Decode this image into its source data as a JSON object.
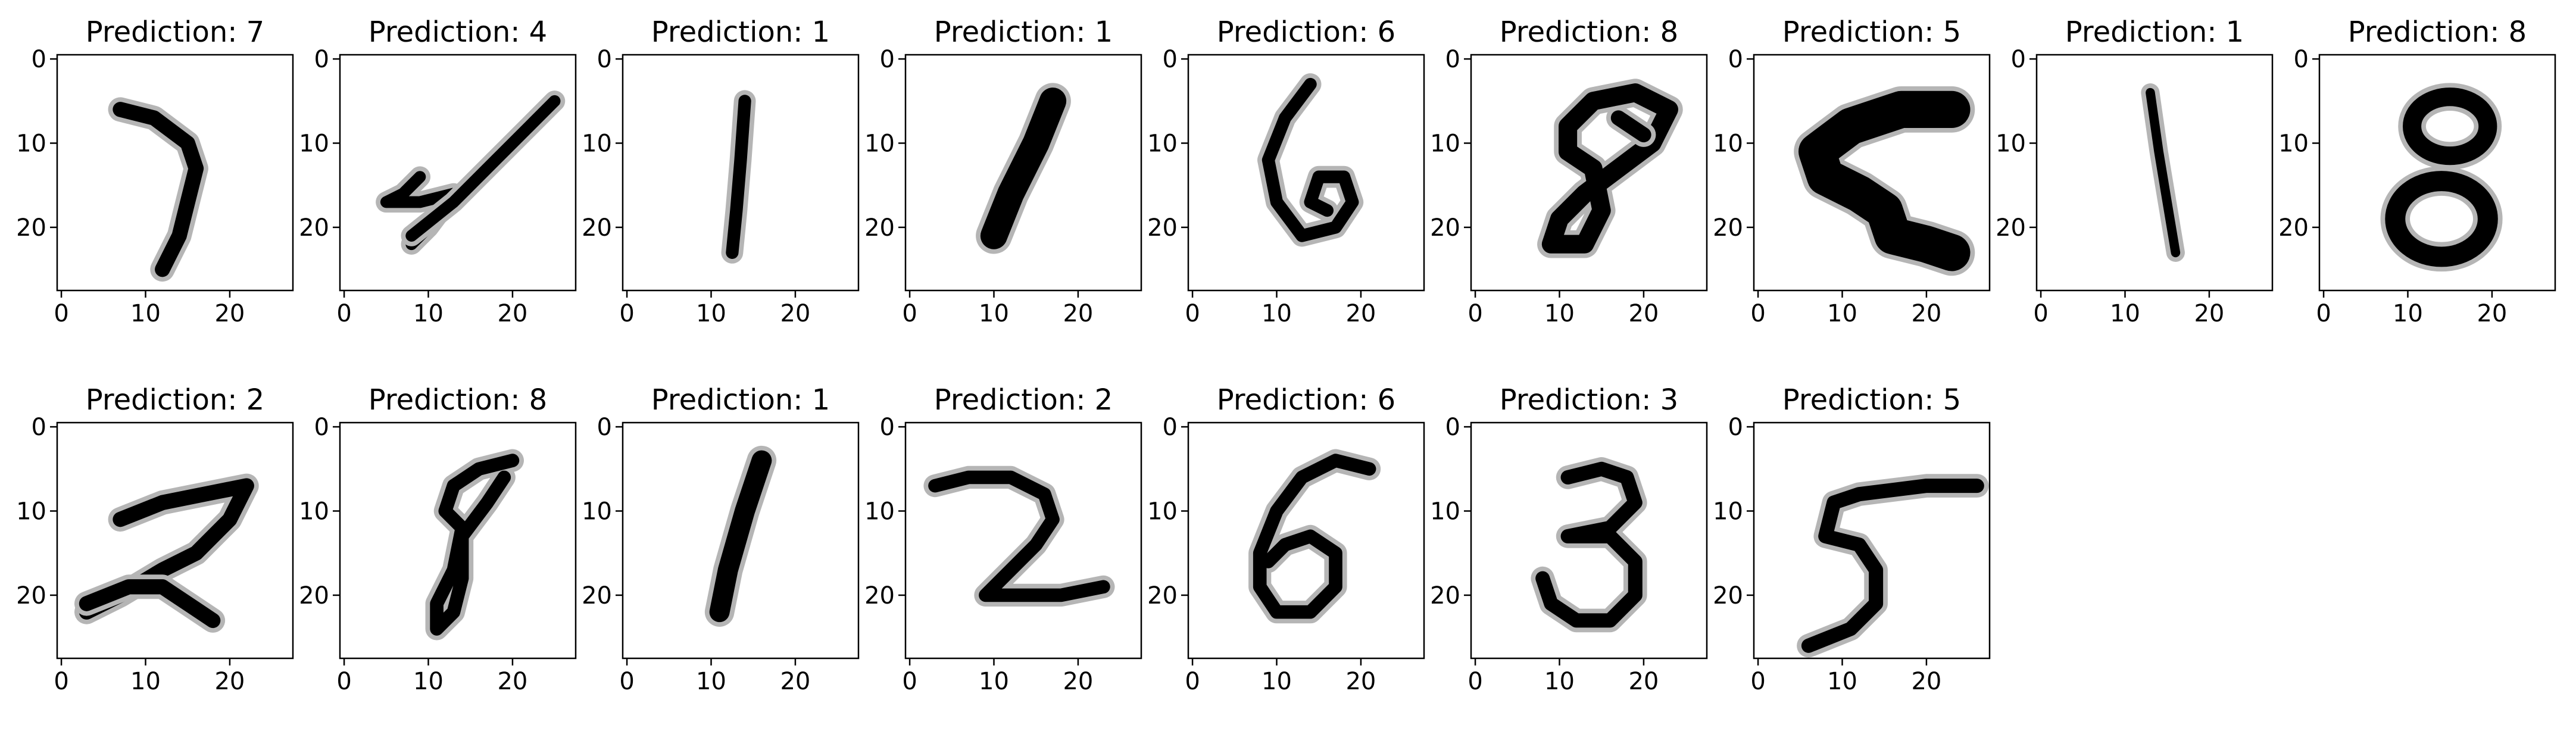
{
  "figure": {
    "title_prefix": "Prediction: "
  },
  "chart_data": [
    {
      "type": "heatmap",
      "title": "Prediction: 7",
      "prediction": 7,
      "colormap": "binary",
      "xlabel": "",
      "ylabel": "",
      "xlim": [
        -0.5,
        27.5
      ],
      "ylim": [
        27.5,
        -0.5
      ],
      "xticks": [
        0,
        10,
        20
      ],
      "yticks": [
        0,
        10,
        20
      ],
      "grid": false,
      "strokes": [
        {
          "points": [
            [
              7,
              6
            ],
            [
              11,
              7
            ],
            [
              15,
              10
            ],
            [
              16,
              13
            ],
            [
              15,
              17
            ],
            [
              14,
              21
            ],
            [
              12,
              25
            ]
          ],
          "width": 1.8
        }
      ]
    },
    {
      "type": "heatmap",
      "title": "Prediction: 4",
      "prediction": 4,
      "colormap": "binary",
      "xlabel": "",
      "ylabel": "",
      "xlim": [
        -0.5,
        27.5
      ],
      "ylim": [
        27.5,
        -0.5
      ],
      "xticks": [
        0,
        10,
        20
      ],
      "yticks": [
        0,
        10,
        20
      ],
      "grid": false,
      "strokes": [
        {
          "points": [
            [
              9,
              14
            ],
            [
              7,
              16
            ],
            [
              5,
              17
            ],
            [
              9,
              17
            ],
            [
              13,
              16
            ],
            [
              10,
              20
            ],
            [
              8,
              22
            ]
          ],
          "width": 1.4
        },
        {
          "points": [
            [
              8,
              21
            ],
            [
              13,
              17
            ],
            [
              18,
              12
            ],
            [
              22,
              8
            ],
            [
              25,
              5
            ]
          ],
          "width": 1.4
        }
      ]
    },
    {
      "type": "heatmap",
      "title": "Prediction: 1",
      "prediction": 1,
      "colormap": "binary",
      "xlabel": "",
      "ylabel": "",
      "xlim": [
        -0.5,
        27.5
      ],
      "ylim": [
        27.5,
        -0.5
      ],
      "xticks": [
        0,
        10,
        20
      ],
      "yticks": [
        0,
        10,
        20
      ],
      "grid": false,
      "strokes": [
        {
          "points": [
            [
              14,
              5
            ],
            [
              13.5,
              12
            ],
            [
              13,
              18
            ],
            [
              12.5,
              23
            ]
          ],
          "width": 1.5
        }
      ]
    },
    {
      "type": "heatmap",
      "title": "Prediction: 1",
      "prediction": 1,
      "colormap": "binary",
      "xlabel": "",
      "ylabel": "",
      "xlim": [
        -0.5,
        27.5
      ],
      "ylim": [
        27.5,
        -0.5
      ],
      "xticks": [
        0,
        10,
        20
      ],
      "yticks": [
        0,
        10,
        20
      ],
      "grid": false,
      "strokes": [
        {
          "points": [
            [
              17,
              5
            ],
            [
              15,
              10
            ],
            [
              12,
              16
            ],
            [
              10,
              21
            ]
          ],
          "width": 3.2
        }
      ]
    },
    {
      "type": "heatmap",
      "title": "Prediction: 6",
      "prediction": 6,
      "colormap": "binary",
      "xlabel": "",
      "ylabel": "",
      "xlim": [
        -0.5,
        27.5
      ],
      "ylim": [
        27.5,
        -0.5
      ],
      "xticks": [
        0,
        10,
        20
      ],
      "yticks": [
        0,
        10,
        20
      ],
      "grid": false,
      "strokes": [
        {
          "points": [
            [
              14,
              3
            ],
            [
              11,
              7
            ],
            [
              9,
              12
            ],
            [
              10,
              17
            ],
            [
              13,
              21
            ],
            [
              17,
              20
            ],
            [
              19,
              17
            ],
            [
              18,
              14
            ],
            [
              15,
              14
            ],
            [
              14,
              17
            ],
            [
              16,
              18
            ]
          ],
          "width": 1.5
        }
      ]
    },
    {
      "type": "heatmap",
      "title": "Prediction: 8",
      "prediction": 8,
      "colormap": "binary",
      "xlabel": "",
      "ylabel": "",
      "xlim": [
        -0.5,
        27.5
      ],
      "ylim": [
        27.5,
        -0.5
      ],
      "xticks": [
        0,
        10,
        20
      ],
      "yticks": [
        0,
        10,
        20
      ],
      "grid": false,
      "strokes": [
        {
          "points": [
            [
              14,
              13
            ],
            [
              11,
              11
            ],
            [
              11,
              8
            ],
            [
              14,
              5
            ],
            [
              19,
              4
            ],
            [
              23,
              6
            ],
            [
              21,
              10
            ],
            [
              17,
              13
            ],
            [
              13,
              16
            ],
            [
              10,
              19
            ],
            [
              9,
              22
            ],
            [
              13,
              22
            ],
            [
              15,
              18
            ],
            [
              14,
              13
            ]
          ],
          "width": 2.2
        },
        {
          "points": [
            [
              17,
              7
            ],
            [
              20,
              9
            ]
          ],
          "width": 1.8
        }
      ]
    },
    {
      "type": "heatmap",
      "title": "Prediction: 5",
      "prediction": 5,
      "colormap": "binary",
      "xlabel": "",
      "ylabel": "",
      "xlim": [
        -0.5,
        27.5
      ],
      "ylim": [
        27.5,
        -0.5
      ],
      "xticks": [
        0,
        10,
        20
      ],
      "yticks": [
        0,
        10,
        20
      ],
      "grid": false,
      "strokes": [
        {
          "points": [
            [
              23,
              6
            ],
            [
              17,
              6
            ],
            [
              11,
              8
            ],
            [
              7,
              11
            ],
            [
              8,
              14
            ],
            [
              12,
              16
            ],
            [
              15,
              18
            ],
            [
              16,
              21
            ],
            [
              20,
              22
            ],
            [
              23,
              23
            ]
          ],
          "width": 4.4
        }
      ]
    },
    {
      "type": "heatmap",
      "title": "Prediction: 1",
      "prediction": 1,
      "colormap": "binary",
      "xlabel": "",
      "ylabel": "",
      "xlim": [
        -0.5,
        27.5
      ],
      "ylim": [
        27.5,
        -0.5
      ],
      "xticks": [
        0,
        10,
        20
      ],
      "yticks": [
        0,
        10,
        20
      ],
      "grid": false,
      "strokes": [
        {
          "points": [
            [
              13,
              4
            ],
            [
              14,
              11
            ],
            [
              15,
              17
            ],
            [
              16,
              23
            ]
          ],
          "width": 1.1
        }
      ]
    },
    {
      "type": "heatmap",
      "title": "Prediction: 8",
      "prediction": 8,
      "colormap": "binary",
      "xlabel": "",
      "ylabel": "",
      "xlim": [
        -0.5,
        27.5
      ],
      "ylim": [
        27.5,
        -0.5
      ],
      "xticks": [
        0,
        10,
        20
      ],
      "yticks": [
        0,
        10,
        20
      ],
      "grid": false,
      "ellipses": [
        {
          "cx": 15,
          "cy": 8,
          "rx": 4.5,
          "ry": 3.5,
          "width": 2.2
        },
        {
          "cx": 14,
          "cy": 19,
          "rx": 5.5,
          "ry": 4.5,
          "width": 2.4
        }
      ]
    },
    {
      "type": "heatmap",
      "title": "Prediction: 2",
      "prediction": 2,
      "colormap": "binary",
      "xlabel": "",
      "ylabel": "",
      "xlim": [
        -0.5,
        27.5
      ],
      "ylim": [
        27.5,
        -0.5
      ],
      "xticks": [
        0,
        10,
        20
      ],
      "yticks": [
        0,
        10,
        20
      ],
      "grid": false,
      "strokes": [
        {
          "points": [
            [
              7,
              11
            ],
            [
              12,
              9
            ],
            [
              17,
              8
            ],
            [
              22,
              7
            ],
            [
              20,
              11
            ],
            [
              16,
              15
            ],
            [
              12,
              17
            ],
            [
              7,
              20
            ],
            [
              3,
              22
            ]
          ],
          "width": 1.8
        },
        {
          "points": [
            [
              3,
              21
            ],
            [
              8,
              19
            ],
            [
              12,
              19
            ],
            [
              15,
              21
            ],
            [
              18,
              23
            ]
          ],
          "width": 1.8
        }
      ]
    },
    {
      "type": "heatmap",
      "title": "Prediction: 8",
      "prediction": 8,
      "colormap": "binary",
      "xlabel": "",
      "ylabel": "",
      "xlim": [
        -0.5,
        27.5
      ],
      "ylim": [
        27.5,
        -0.5
      ],
      "xticks": [
        0,
        10,
        20
      ],
      "yticks": [
        0,
        10,
        20
      ],
      "grid": false,
      "strokes": [
        {
          "points": [
            [
              20,
              4
            ],
            [
              16,
              5
            ],
            [
              13,
              7
            ],
            [
              12,
              10
            ],
            [
              14,
              12
            ],
            [
              13,
              17
            ],
            [
              11,
              21
            ],
            [
              11,
              24
            ],
            [
              13,
              22
            ],
            [
              14,
              18
            ],
            [
              14,
              13
            ],
            [
              17,
              9
            ],
            [
              19,
              6
            ]
          ],
          "width": 1.6
        }
      ]
    },
    {
      "type": "heatmap",
      "title": "Prediction: 1",
      "prediction": 1,
      "colormap": "binary",
      "xlabel": "",
      "ylabel": "",
      "xlim": [
        -0.5,
        27.5
      ],
      "ylim": [
        27.5,
        -0.5
      ],
      "xticks": [
        0,
        10,
        20
      ],
      "yticks": [
        0,
        10,
        20
      ],
      "grid": false,
      "strokes": [
        {
          "points": [
            [
              16,
              4
            ],
            [
              14,
              10
            ],
            [
              12,
              17
            ],
            [
              11,
              22
            ]
          ],
          "width": 2.4
        }
      ]
    },
    {
      "type": "heatmap",
      "title": "Prediction: 2",
      "prediction": 2,
      "colormap": "binary",
      "xlabel": "",
      "ylabel": "",
      "xlim": [
        -0.5,
        27.5
      ],
      "ylim": [
        27.5,
        -0.5
      ],
      "xticks": [
        0,
        10,
        20
      ],
      "yticks": [
        0,
        10,
        20
      ],
      "grid": false,
      "strokes": [
        {
          "points": [
            [
              3,
              7
            ],
            [
              7,
              6
            ],
            [
              12,
              6
            ],
            [
              16,
              8
            ],
            [
              17,
              11
            ],
            [
              15,
              14
            ],
            [
              12,
              17
            ],
            [
              9,
              20
            ],
            [
              13,
              20
            ],
            [
              18,
              20
            ],
            [
              23,
              19
            ]
          ],
          "width": 1.6
        }
      ]
    },
    {
      "type": "heatmap",
      "title": "Prediction: 6",
      "prediction": 6,
      "colormap": "binary",
      "xlabel": "",
      "ylabel": "",
      "xlim": [
        -0.5,
        27.5
      ],
      "ylim": [
        27.5,
        -0.5
      ],
      "xticks": [
        0,
        10,
        20
      ],
      "yticks": [
        0,
        10,
        20
      ],
      "grid": false,
      "strokes": [
        {
          "points": [
            [
              21,
              5
            ],
            [
              17,
              4
            ],
            [
              13,
              6
            ],
            [
              10,
              10
            ],
            [
              8,
              15
            ],
            [
              8,
              19
            ],
            [
              10,
              22
            ],
            [
              14,
              22
            ],
            [
              17,
              19
            ],
            [
              17,
              15
            ],
            [
              14,
              13
            ],
            [
              11,
              14
            ],
            [
              9,
              16
            ]
          ],
          "width": 1.6
        }
      ]
    },
    {
      "type": "heatmap",
      "title": "Prediction: 3",
      "prediction": 3,
      "colormap": "binary",
      "xlabel": "",
      "ylabel": "",
      "xlim": [
        -0.5,
        27.5
      ],
      "ylim": [
        27.5,
        -0.5
      ],
      "xticks": [
        0,
        10,
        20
      ],
      "yticks": [
        0,
        10,
        20
      ],
      "grid": false,
      "strokes": [
        {
          "points": [
            [
              11,
              6
            ],
            [
              15,
              5
            ],
            [
              18,
              6
            ],
            [
              19,
              9
            ],
            [
              16,
              12
            ],
            [
              11,
              13
            ],
            [
              16,
              13
            ],
            [
              19,
              16
            ],
            [
              19,
              20
            ],
            [
              16,
              23
            ],
            [
              12,
              23
            ],
            [
              9,
              21
            ],
            [
              8,
              18
            ]
          ],
          "width": 1.7
        }
      ]
    },
    {
      "type": "heatmap",
      "title": "Prediction: 5",
      "prediction": 5,
      "colormap": "binary",
      "xlabel": "",
      "ylabel": "",
      "xlim": [
        -0.5,
        27.5
      ],
      "ylim": [
        27.5,
        -0.5
      ],
      "xticks": [
        0,
        10,
        20
      ],
      "yticks": [
        0,
        10,
        20
      ],
      "grid": false,
      "strokes": [
        {
          "points": [
            [
              26,
              7
            ],
            [
              20,
              7
            ],
            [
              12,
              8
            ],
            [
              9,
              9
            ],
            [
              8,
              13
            ],
            [
              12,
              14
            ],
            [
              14,
              17
            ],
            [
              14,
              21
            ],
            [
              11,
              24
            ],
            [
              6,
              26
            ]
          ],
          "width": 1.7
        }
      ]
    }
  ]
}
